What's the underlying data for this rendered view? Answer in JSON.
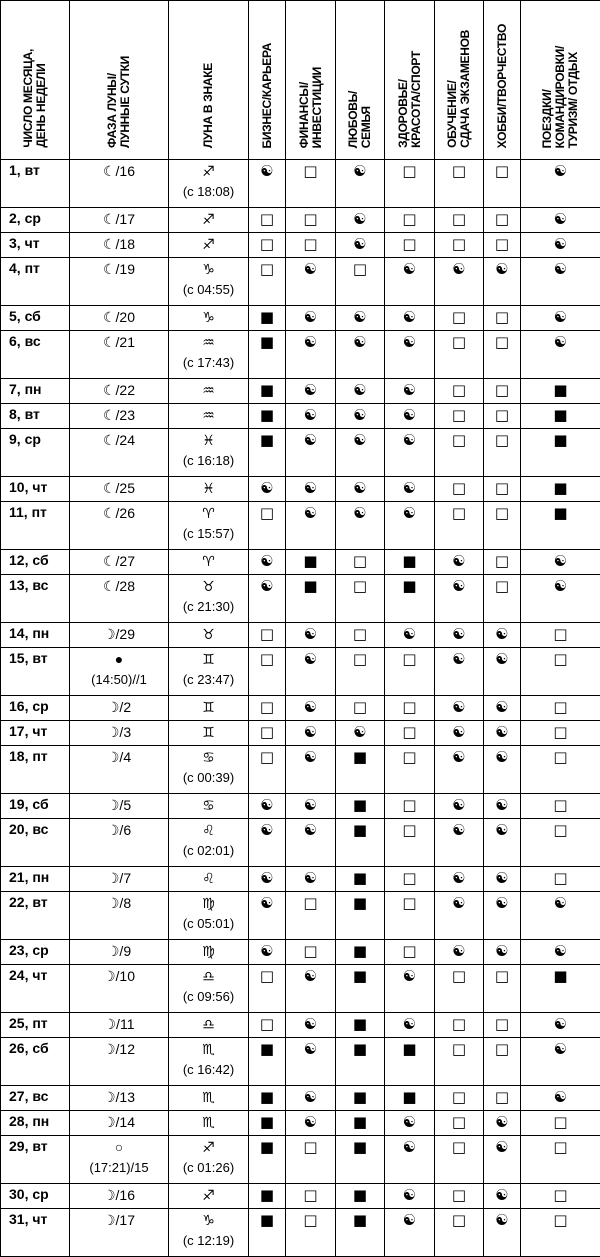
{
  "headers": [
    "ЧИСЛО МЕСЯЦА,\nДЕНЬ НЕДЕЛИ",
    "ФАЗА ЛУНЫ/\nЛУННЫЕ СУТКИ",
    "ЛУНА В ЗНАКЕ",
    "БИЗНЕС/КАРЬЕРА",
    "ФИНАНСЫ/\nИНВЕСТИЦИИ",
    "ЛЮБОВЬ/\nСЕМЬЯ",
    "ЗДОРОВЬЕ/\nКРАСОТА/СПОРТ",
    "ОБУЧЕНИЕ/\nСДАЧА ЭКЗАМЕНОВ",
    "ХОББИ/ТВОРЧЕСТВО",
    "ПОЕЗДКИ/\nКОМАНДИРОВКИ/\nТУРИЗМ/ ОТДЫХ"
  ],
  "symbols": {
    "yin_yang": "☯",
    "empty_square": "□",
    "filled_square": "■"
  },
  "rows": [
    {
      "day": "1, вт",
      "phase": "☾/16",
      "phase_sub": "",
      "sign": "♐︎",
      "sign_time": "(с 18:08)",
      "marks": [
        "☯",
        "□",
        "☯",
        "□",
        "□",
        "□",
        "☯"
      ]
    },
    {
      "day": "2, ср",
      "phase": "☾/17",
      "phase_sub": "",
      "sign": "♐︎",
      "sign_time": "",
      "marks": [
        "□",
        "□",
        "☯",
        "□",
        "□",
        "□",
        "☯"
      ]
    },
    {
      "day": "3, чт",
      "phase": "☾/18",
      "phase_sub": "",
      "sign": "♐︎",
      "sign_time": "",
      "marks": [
        "□",
        "□",
        "☯",
        "□",
        "□",
        "□",
        "☯"
      ]
    },
    {
      "day": "4, пт",
      "phase": "☾/19",
      "phase_sub": "",
      "sign": "♑︎",
      "sign_time": "(с 04:55)",
      "marks": [
        "□",
        "☯",
        "□",
        "☯",
        "☯",
        "☯",
        "☯"
      ]
    },
    {
      "day": "5, сб",
      "phase": "☾/20",
      "phase_sub": "",
      "sign": "♑︎",
      "sign_time": "",
      "marks": [
        "■",
        "☯",
        "☯",
        "☯",
        "□",
        "□",
        "☯"
      ]
    },
    {
      "day": "6, вс",
      "phase": "☾/21",
      "phase_sub": "",
      "sign": "♒︎",
      "sign_time": "(с 17:43)",
      "marks": [
        "■",
        "☯",
        "☯",
        "☯",
        "□",
        "□",
        "☯"
      ]
    },
    {
      "day": "7, пн",
      "phase": "☾/22",
      "phase_sub": "",
      "sign": "♒︎",
      "sign_time": "",
      "marks": [
        "■",
        "☯",
        "☯",
        "☯",
        "□",
        "□",
        "■"
      ]
    },
    {
      "day": "8, вт",
      "phase": "☾/23",
      "phase_sub": "",
      "sign": "♒︎",
      "sign_time": "",
      "marks": [
        "■",
        "☯",
        "☯",
        "☯",
        "□",
        "□",
        "■"
      ]
    },
    {
      "day": "9, ср",
      "phase": "☾/24",
      "phase_sub": "",
      "sign": "♓︎",
      "sign_time": "(с 16:18)",
      "marks": [
        "■",
        "☯",
        "☯",
        "☯",
        "□",
        "□",
        "■"
      ]
    },
    {
      "day": "10, чт",
      "phase": "☾/25",
      "phase_sub": "",
      "sign": "♓︎",
      "sign_time": "",
      "marks": [
        "☯",
        "☯",
        "☯",
        "☯",
        "□",
        "□",
        "■"
      ]
    },
    {
      "day": "11, пт",
      "phase": "☾/26",
      "phase_sub": "",
      "sign": "♈︎",
      "sign_time": "(с 15:57)",
      "marks": [
        "□",
        "☯",
        "☯",
        "☯",
        "□",
        "□",
        "■"
      ]
    },
    {
      "day": "12, сб",
      "phase": "☾/27",
      "phase_sub": "",
      "sign": "♈︎",
      "sign_time": "",
      "marks": [
        "☯",
        "■",
        "□",
        "■",
        "☯",
        "□",
        "☯"
      ]
    },
    {
      "day": "13, вс",
      "phase": "☾/28",
      "phase_sub": "",
      "sign": "♉︎",
      "sign_time": "(с 21:30)",
      "marks": [
        "☯",
        "■",
        "□",
        "■",
        "☯",
        "□",
        "☯"
      ]
    },
    {
      "day": "14, пн",
      "phase": "☽/29",
      "phase_sub": "",
      "sign": "♉︎",
      "sign_time": "",
      "marks": [
        "□",
        "☯",
        "□",
        "☯",
        "☯",
        "☯",
        "□"
      ]
    },
    {
      "day": "15, вт",
      "phase": "●",
      "phase_sub": "(14:50)//1",
      "sign": "♊︎",
      "sign_time": "(с 23:47)",
      "marks": [
        "□",
        "☯",
        "□",
        "□",
        "☯",
        "☯",
        "□"
      ]
    },
    {
      "day": "16, ср",
      "phase": "☽/2",
      "phase_sub": "",
      "sign": "♊︎",
      "sign_time": "",
      "marks": [
        "□",
        "☯",
        "□",
        "□",
        "☯",
        "☯",
        "□"
      ]
    },
    {
      "day": "17, чт",
      "phase": "☽/3",
      "phase_sub": "",
      "sign": "♊︎",
      "sign_time": "",
      "marks": [
        "□",
        "☯",
        "☯",
        "□",
        "☯",
        "☯",
        "□"
      ]
    },
    {
      "day": "18, пт",
      "phase": "☽/4",
      "phase_sub": "",
      "sign": "♋︎",
      "sign_time": "(с 00:39)",
      "marks": [
        "□",
        "☯",
        "■",
        "□",
        "☯",
        "☯",
        "□"
      ]
    },
    {
      "day": "19, сб",
      "phase": "☽/5",
      "phase_sub": "",
      "sign": "♋︎",
      "sign_time": "",
      "marks": [
        "☯",
        "☯",
        "■",
        "□",
        "☯",
        "☯",
        "□"
      ]
    },
    {
      "day": "20, вс",
      "phase": "☽/6",
      "phase_sub": "",
      "sign": "♌︎",
      "sign_time": "(с 02:01)",
      "marks": [
        "☯",
        "☯",
        "■",
        "□",
        "☯",
        "☯",
        "□"
      ]
    },
    {
      "day": "21, пн",
      "phase": "☽/7",
      "phase_sub": "",
      "sign": "♌︎",
      "sign_time": "",
      "marks": [
        "☯",
        "☯",
        "■",
        "□",
        "☯",
        "☯",
        "□"
      ]
    },
    {
      "day": "22, вт",
      "phase": "☽/8",
      "phase_sub": "",
      "sign": "♍︎",
      "sign_time": "(с 05:01)",
      "marks": [
        "☯",
        "□",
        "■",
        "□",
        "☯",
        "☯",
        "☯"
      ]
    },
    {
      "day": "23, ср",
      "phase": "☽/9",
      "phase_sub": "",
      "sign": "♍︎",
      "sign_time": "",
      "marks": [
        "☯",
        "□",
        "■",
        "□",
        "☯",
        "☯",
        "☯"
      ]
    },
    {
      "day": "24, чт",
      "phase": "☽/10",
      "phase_sub": "",
      "sign": "♎︎",
      "sign_time": "(с 09:56)",
      "marks": [
        "□",
        "☯",
        "■",
        "☯",
        "□",
        "□",
        "■"
      ]
    },
    {
      "day": "25, пт",
      "phase": "☽/11",
      "phase_sub": "",
      "sign": "♎︎",
      "sign_time": "",
      "marks": [
        "□",
        "☯",
        "■",
        "☯",
        "□",
        "□",
        "☯"
      ]
    },
    {
      "day": "26, сб",
      "phase": "☽/12",
      "phase_sub": "",
      "sign": "♏︎",
      "sign_time": "(с 16:42)",
      "marks": [
        "■",
        "☯",
        "■",
        "■",
        "□",
        "□",
        "☯"
      ]
    },
    {
      "day": "27, вс",
      "phase": "☽/13",
      "phase_sub": "",
      "sign": "♏︎",
      "sign_time": "",
      "marks": [
        "■",
        "☯",
        "■",
        "■",
        "□",
        "□",
        "☯"
      ]
    },
    {
      "day": "28, пн",
      "phase": "☽/14",
      "phase_sub": "",
      "sign": "♏︎",
      "sign_time": "",
      "marks": [
        "■",
        "☯",
        "■",
        "☯",
        "□",
        "☯",
        "□"
      ]
    },
    {
      "day": "29, вт",
      "phase": "○",
      "phase_sub": "(17:21)/15",
      "sign": "♐︎",
      "sign_time": "(с 01:26)",
      "marks": [
        "■",
        "□",
        "■",
        "☯",
        "□",
        "☯",
        "□"
      ]
    },
    {
      "day": "30, ср",
      "phase": "☽/16",
      "phase_sub": "",
      "sign": "♐︎",
      "sign_time": "",
      "marks": [
        "■",
        "□",
        "■",
        "☯",
        "□",
        "☯",
        "□"
      ]
    },
    {
      "day": "31, чт",
      "phase": "☽/17",
      "phase_sub": "",
      "sign": "♑︎",
      "sign_time": "(с 12:19)",
      "marks": [
        "■",
        "□",
        "■",
        "☯",
        "□",
        "☯",
        "□"
      ]
    }
  ]
}
